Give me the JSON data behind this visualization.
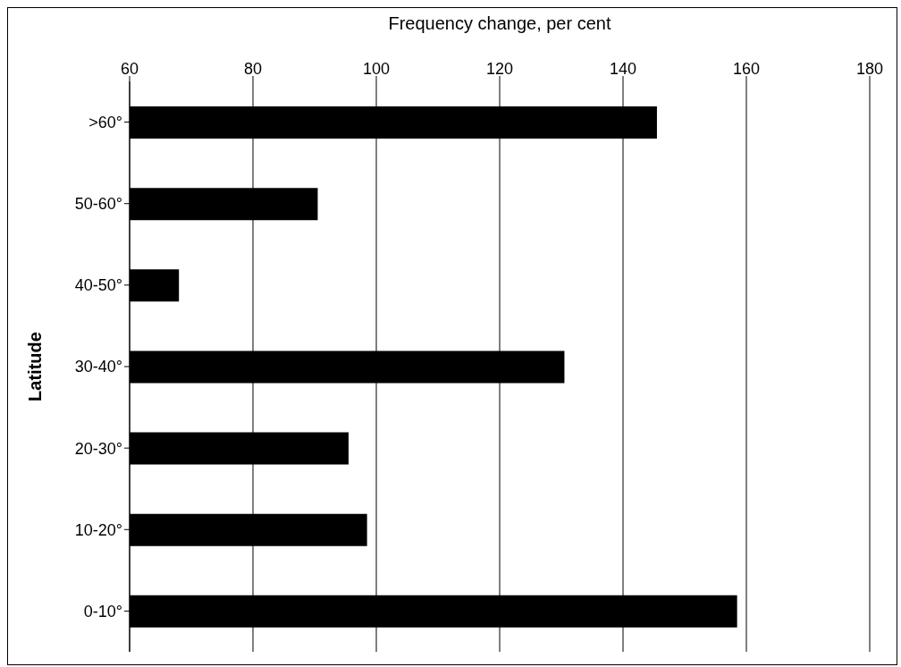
{
  "chart_data": {
    "type": "bar",
    "orientation": "horizontal",
    "xlabel": "Frequency change, per cent",
    "ylabel": "Latitude",
    "categories": [
      ">60°",
      "50-60°",
      "40-50°",
      "30-40°",
      "20-30°",
      "10-20°",
      "0-10°"
    ],
    "values": [
      145.5,
      90.5,
      68,
      130.5,
      95.5,
      98.5,
      158.5
    ],
    "color": "#000000",
    "xlim": [
      60,
      180
    ],
    "xticks": [
      60,
      80,
      100,
      120,
      140,
      160,
      180
    ],
    "grid": "x",
    "legend": false
  }
}
